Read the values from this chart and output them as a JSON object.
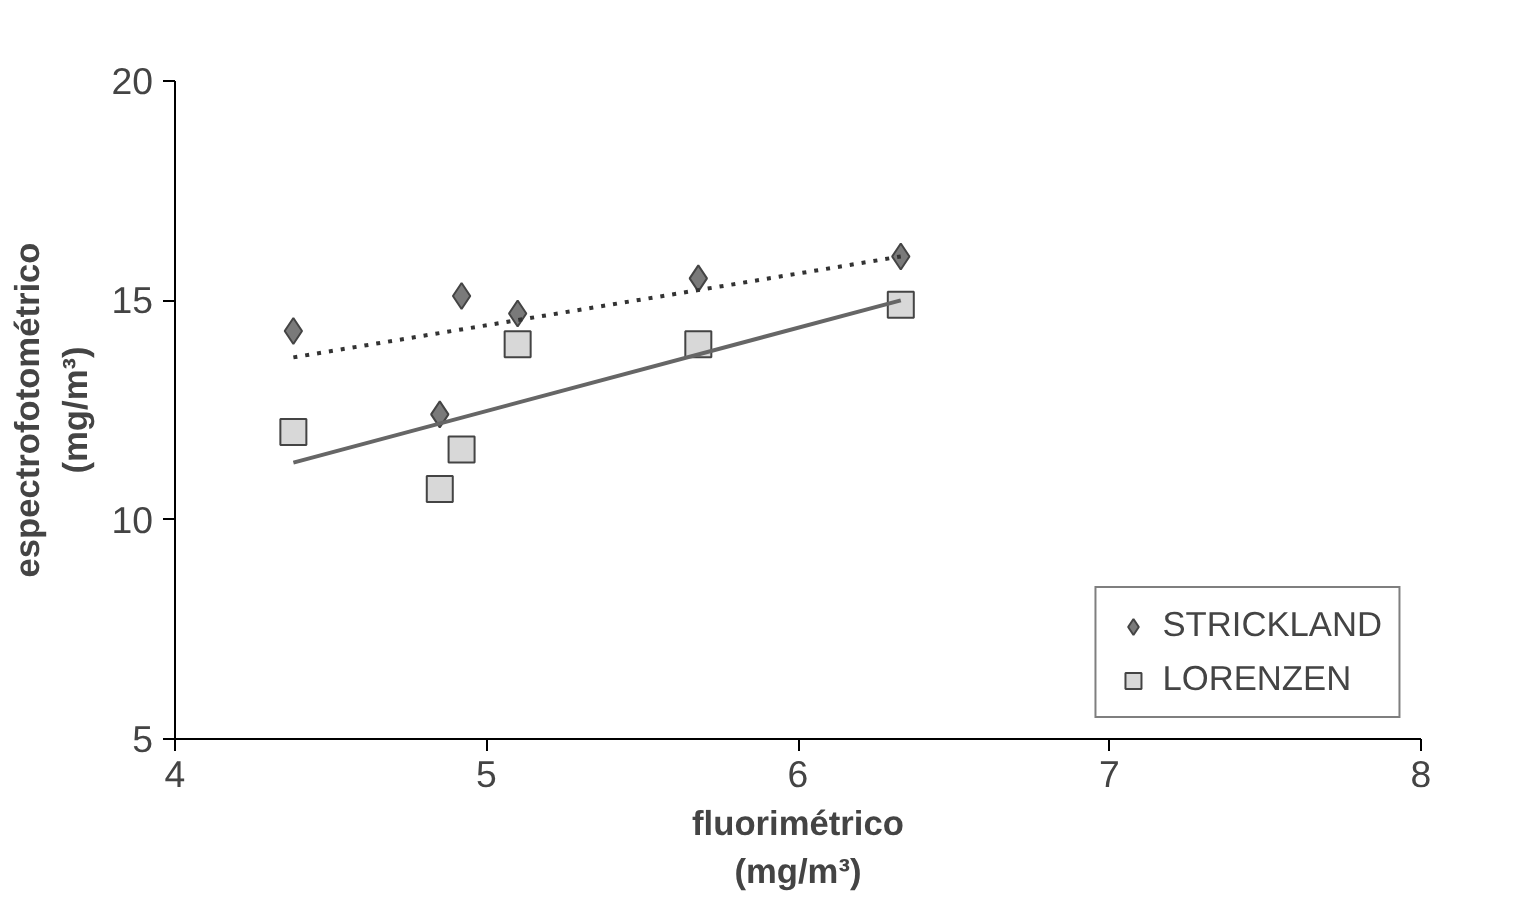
{
  "chart_data": {
    "type": "scatter",
    "xlabel": "fluorimétrico\n(mg/m³)",
    "ylabel": "espectrofotométrico\n(mg/m³)",
    "xlim": [
      4,
      8
    ],
    "xticks": [
      4,
      5,
      6,
      7,
      8
    ],
    "ylim": [
      5,
      20
    ],
    "yticks": [
      5,
      10,
      15,
      20
    ],
    "grid": false,
    "legend": "bottom right",
    "series": [
      {
        "name": "STRICKLAND",
        "color": "#7a7a7a",
        "marker": "diamond",
        "x": [
          4.38,
          4.85,
          4.92,
          5.1,
          5.68,
          6.33
        ],
        "values": [
          14.3,
          12.4,
          15.1,
          14.7,
          15.5,
          16.0
        ]
      },
      {
        "name": "LORENZEN",
        "color": "#d8d8d8",
        "marker": "square",
        "x": [
          4.38,
          4.85,
          4.92,
          5.1,
          5.68,
          6.33
        ],
        "values": [
          12.0,
          10.7,
          11.6,
          14.0,
          14.0,
          14.9
        ]
      },
      {
        "type": "line",
        "color": "#333333",
        "line_style": "dotted",
        "x": [
          4.38,
          6.33
        ],
        "values": [
          13.7,
          16.0
        ]
      },
      {
        "type": "line",
        "color": "#666666",
        "line_style": "solid",
        "x": [
          4.38,
          6.33
        ],
        "values": [
          11.3,
          15.0
        ]
      }
    ]
  }
}
